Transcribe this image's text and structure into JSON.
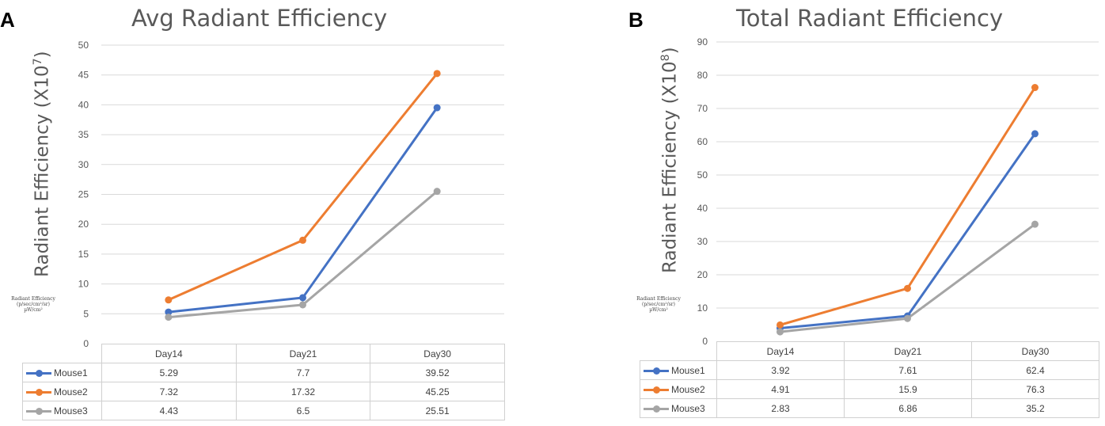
{
  "panels": [
    {
      "letter": "A",
      "title": "Avg Radiant Efficiency",
      "ylabel_main": "Radiant Efficiency  (X10",
      "ylabel_exp": "7",
      "ylabel_end": ")",
      "unit_note_line1": "Radiant Efficiency",
      "unit_note_line2": "(p/sec/cm²/sr)",
      "unit_note_line3": "µW/cm²"
    },
    {
      "letter": "B",
      "title": "Total Radiant Efficiency",
      "ylabel_main": "Radiant Efficiency  (X10",
      "ylabel_exp": "8",
      "ylabel_end": ")",
      "unit_note_line1": "Radiant Efficiency",
      "unit_note_line2": "(p/sec/cm²/sr)",
      "unit_note_line3": "µW/cm²"
    }
  ],
  "chart_data": [
    {
      "type": "line",
      "title": "Avg Radiant Efficiency",
      "ylabel": "Radiant Efficiency (X10^7)",
      "xlabel": "",
      "categories": [
        "Day14",
        "Day21",
        "Day30"
      ],
      "ylim": [
        0,
        50
      ],
      "yticks": [
        0,
        5,
        10,
        15,
        20,
        25,
        30,
        35,
        40,
        45,
        50
      ],
      "grid": true,
      "legend": "data-table",
      "series": [
        {
          "name": "Mouse1",
          "color": "#4472C4",
          "values": [
            5.29,
            7.7,
            39.52
          ],
          "labels": [
            "5.29",
            "7.7",
            "39.52"
          ]
        },
        {
          "name": "Mouse2",
          "color": "#ED7D31",
          "values": [
            7.32,
            17.32,
            45.25
          ],
          "labels": [
            "7.32",
            "17.32",
            "45.25"
          ]
        },
        {
          "name": "Mouse3",
          "color": "#A5A5A5",
          "values": [
            4.43,
            6.5,
            25.51
          ],
          "labels": [
            "4.43",
            "6.5",
            "25.51"
          ]
        }
      ]
    },
    {
      "type": "line",
      "title": "Total Radiant Efficiency",
      "ylabel": "Radiant Efficiency (X10^8)",
      "xlabel": "",
      "categories": [
        "Day14",
        "Day21",
        "Day30"
      ],
      "ylim": [
        0,
        90
      ],
      "yticks": [
        0,
        10,
        20,
        30,
        40,
        50,
        60,
        70,
        80,
        90
      ],
      "grid": true,
      "legend": "data-table",
      "series": [
        {
          "name": "Mouse1",
          "color": "#4472C4",
          "values": [
            3.92,
            7.61,
            62.4
          ],
          "labels": [
            "3.92",
            "7.61",
            "62.4"
          ]
        },
        {
          "name": "Mouse2",
          "color": "#ED7D31",
          "values": [
            4.91,
            15.9,
            76.3
          ],
          "labels": [
            "4.91",
            "15.9",
            "76.3"
          ]
        },
        {
          "name": "Mouse3",
          "color": "#A5A5A5",
          "values": [
            2.83,
            6.86,
            35.2
          ],
          "labels": [
            "2.83",
            "6.86",
            "35.2"
          ]
        }
      ]
    }
  ]
}
